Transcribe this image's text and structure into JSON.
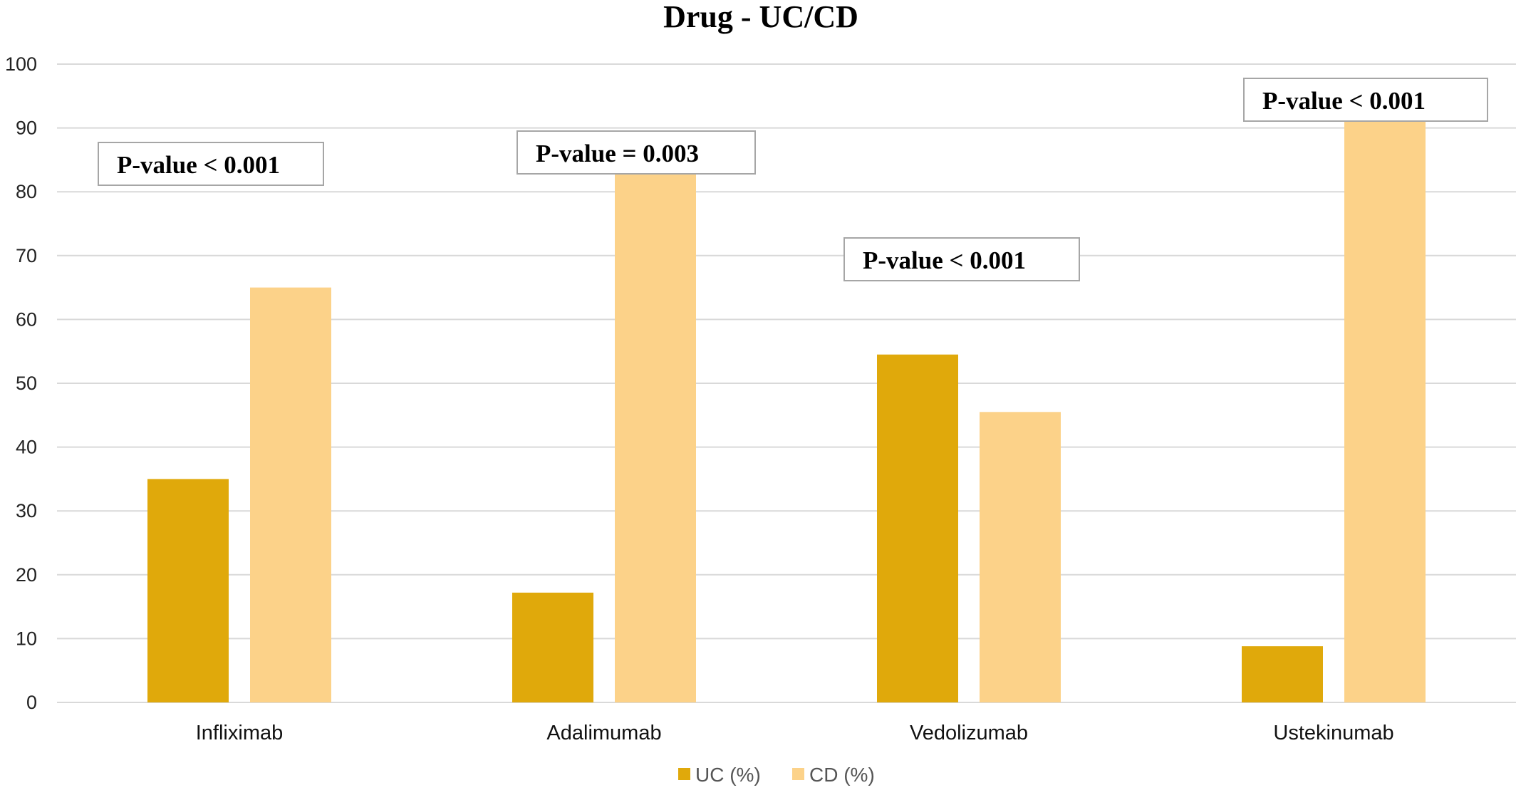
{
  "chart_data": {
    "type": "bar",
    "title": "Drug - UC/CD",
    "categories": [
      "Infliximab",
      "Adalimumab",
      "Vedolizumab",
      "Ustekinumab"
    ],
    "series": [
      {
        "name": "UC (%)",
        "values": [
          35,
          17.2,
          54.5,
          8.8
        ],
        "color": "#E0A90B"
      },
      {
        "name": "CD (%)",
        "values": [
          65,
          82.8,
          45.5,
          91.2
        ],
        "color": "#FCD289"
      }
    ],
    "ylim": [
      0,
      100
    ],
    "yticks": [
      0,
      10,
      20,
      30,
      40,
      50,
      60,
      70,
      80,
      90,
      100
    ],
    "grid": true,
    "legend_position": "bottom-center",
    "annotations": [
      {
        "category": "Infliximab",
        "text": "P-value < 0.001"
      },
      {
        "category": "Adalimumab",
        "text": "P-value = 0.003"
      },
      {
        "category": "Vedolizumab",
        "text": "P-value < 0.001"
      },
      {
        "category": "Ustekinumab",
        "text": "P-value < 0.001"
      }
    ]
  }
}
